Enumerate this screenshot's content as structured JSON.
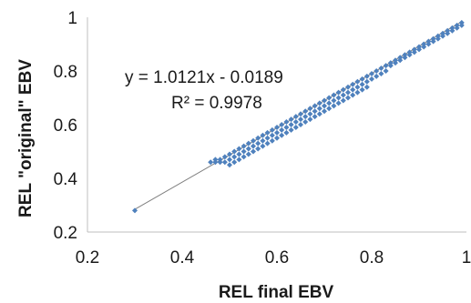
{
  "chart_data": {
    "type": "scatter",
    "title": "",
    "xlabel": "REL final EBV",
    "ylabel": "REL \"original\" EBV",
    "xlim": [
      0.2,
      1
    ],
    "ylim": [
      0.2,
      1
    ],
    "x_ticks": [
      "0.2",
      "0.4",
      "0.6",
      "0.8",
      "1"
    ],
    "y_ticks": [
      "0.2",
      "0.4",
      "0.6",
      "0.8",
      "1"
    ],
    "grid": false,
    "legend": "none",
    "marker_color": "#4f81bd",
    "trendline": {
      "slope": 1.0121,
      "intercept": -0.0189,
      "x_range": [
        0.3,
        0.99
      ],
      "color": "#7f7f7f"
    },
    "equation_label": "y = 1.0121x - 0.0189",
    "r2_label": "R² = 0.9978",
    "series": [
      {
        "points": [
          [
            0.3,
            0.28
          ],
          [
            0.46,
            0.46
          ],
          [
            0.47,
            0.46
          ],
          [
            0.47,
            0.47
          ],
          [
            0.48,
            0.47
          ],
          [
            0.48,
            0.46
          ],
          [
            0.49,
            0.48
          ],
          [
            0.49,
            0.46
          ],
          [
            0.5,
            0.49
          ],
          [
            0.5,
            0.47
          ],
          [
            0.5,
            0.45
          ],
          [
            0.51,
            0.5
          ],
          [
            0.51,
            0.48
          ],
          [
            0.51,
            0.46
          ],
          [
            0.52,
            0.51
          ],
          [
            0.52,
            0.49
          ],
          [
            0.52,
            0.47
          ],
          [
            0.53,
            0.52
          ],
          [
            0.53,
            0.5
          ],
          [
            0.53,
            0.48
          ],
          [
            0.54,
            0.53
          ],
          [
            0.54,
            0.51
          ],
          [
            0.54,
            0.49
          ],
          [
            0.55,
            0.54
          ],
          [
            0.55,
            0.52
          ],
          [
            0.55,
            0.5
          ],
          [
            0.56,
            0.55
          ],
          [
            0.56,
            0.53
          ],
          [
            0.56,
            0.51
          ],
          [
            0.57,
            0.56
          ],
          [
            0.57,
            0.54
          ],
          [
            0.57,
            0.52
          ],
          [
            0.58,
            0.57
          ],
          [
            0.58,
            0.55
          ],
          [
            0.58,
            0.53
          ],
          [
            0.59,
            0.58
          ],
          [
            0.59,
            0.56
          ],
          [
            0.59,
            0.54
          ],
          [
            0.6,
            0.59
          ],
          [
            0.6,
            0.57
          ],
          [
            0.6,
            0.55
          ],
          [
            0.61,
            0.6
          ],
          [
            0.61,
            0.58
          ],
          [
            0.61,
            0.56
          ],
          [
            0.62,
            0.61
          ],
          [
            0.62,
            0.59
          ],
          [
            0.62,
            0.57
          ],
          [
            0.63,
            0.62
          ],
          [
            0.63,
            0.6
          ],
          [
            0.63,
            0.58
          ],
          [
            0.64,
            0.63
          ],
          [
            0.64,
            0.61
          ],
          [
            0.64,
            0.59
          ],
          [
            0.65,
            0.64
          ],
          [
            0.65,
            0.62
          ],
          [
            0.65,
            0.6
          ],
          [
            0.66,
            0.65
          ],
          [
            0.66,
            0.63
          ],
          [
            0.66,
            0.61
          ],
          [
            0.67,
            0.66
          ],
          [
            0.67,
            0.64
          ],
          [
            0.67,
            0.62
          ],
          [
            0.68,
            0.67
          ],
          [
            0.68,
            0.65
          ],
          [
            0.68,
            0.63
          ],
          [
            0.69,
            0.68
          ],
          [
            0.69,
            0.66
          ],
          [
            0.69,
            0.64
          ],
          [
            0.7,
            0.69
          ],
          [
            0.7,
            0.67
          ],
          [
            0.7,
            0.65
          ],
          [
            0.71,
            0.7
          ],
          [
            0.71,
            0.68
          ],
          [
            0.71,
            0.66
          ],
          [
            0.72,
            0.71
          ],
          [
            0.72,
            0.69
          ],
          [
            0.72,
            0.67
          ],
          [
            0.73,
            0.72
          ],
          [
            0.73,
            0.7
          ],
          [
            0.73,
            0.68
          ],
          [
            0.74,
            0.73
          ],
          [
            0.74,
            0.71
          ],
          [
            0.74,
            0.69
          ],
          [
            0.75,
            0.74
          ],
          [
            0.75,
            0.72
          ],
          [
            0.75,
            0.7
          ],
          [
            0.76,
            0.75
          ],
          [
            0.76,
            0.73
          ],
          [
            0.76,
            0.71
          ],
          [
            0.77,
            0.76
          ],
          [
            0.77,
            0.74
          ],
          [
            0.77,
            0.72
          ],
          [
            0.78,
            0.77
          ],
          [
            0.78,
            0.75
          ],
          [
            0.78,
            0.73
          ],
          [
            0.79,
            0.78
          ],
          [
            0.79,
            0.76
          ],
          [
            0.79,
            0.74
          ],
          [
            0.8,
            0.79
          ],
          [
            0.8,
            0.77
          ],
          [
            0.81,
            0.8
          ],
          [
            0.81,
            0.78
          ],
          [
            0.82,
            0.81
          ],
          [
            0.82,
            0.79
          ],
          [
            0.83,
            0.82
          ],
          [
            0.83,
            0.8
          ],
          [
            0.84,
            0.83
          ],
          [
            0.84,
            0.82
          ],
          [
            0.85,
            0.84
          ],
          [
            0.85,
            0.83
          ],
          [
            0.86,
            0.85
          ],
          [
            0.86,
            0.84
          ],
          [
            0.87,
            0.86
          ],
          [
            0.87,
            0.85
          ],
          [
            0.88,
            0.87
          ],
          [
            0.88,
            0.86
          ],
          [
            0.89,
            0.88
          ],
          [
            0.89,
            0.87
          ],
          [
            0.9,
            0.89
          ],
          [
            0.9,
            0.88
          ],
          [
            0.91,
            0.9
          ],
          [
            0.91,
            0.89
          ],
          [
            0.92,
            0.91
          ],
          [
            0.92,
            0.9
          ],
          [
            0.93,
            0.92
          ],
          [
            0.93,
            0.91
          ],
          [
            0.94,
            0.93
          ],
          [
            0.94,
            0.92
          ],
          [
            0.95,
            0.94
          ],
          [
            0.95,
            0.93
          ],
          [
            0.96,
            0.95
          ],
          [
            0.96,
            0.94
          ],
          [
            0.97,
            0.96
          ],
          [
            0.97,
            0.95
          ],
          [
            0.98,
            0.97
          ],
          [
            0.98,
            0.96
          ],
          [
            0.99,
            0.98
          ],
          [
            0.99,
            0.97
          ]
        ]
      }
    ]
  }
}
